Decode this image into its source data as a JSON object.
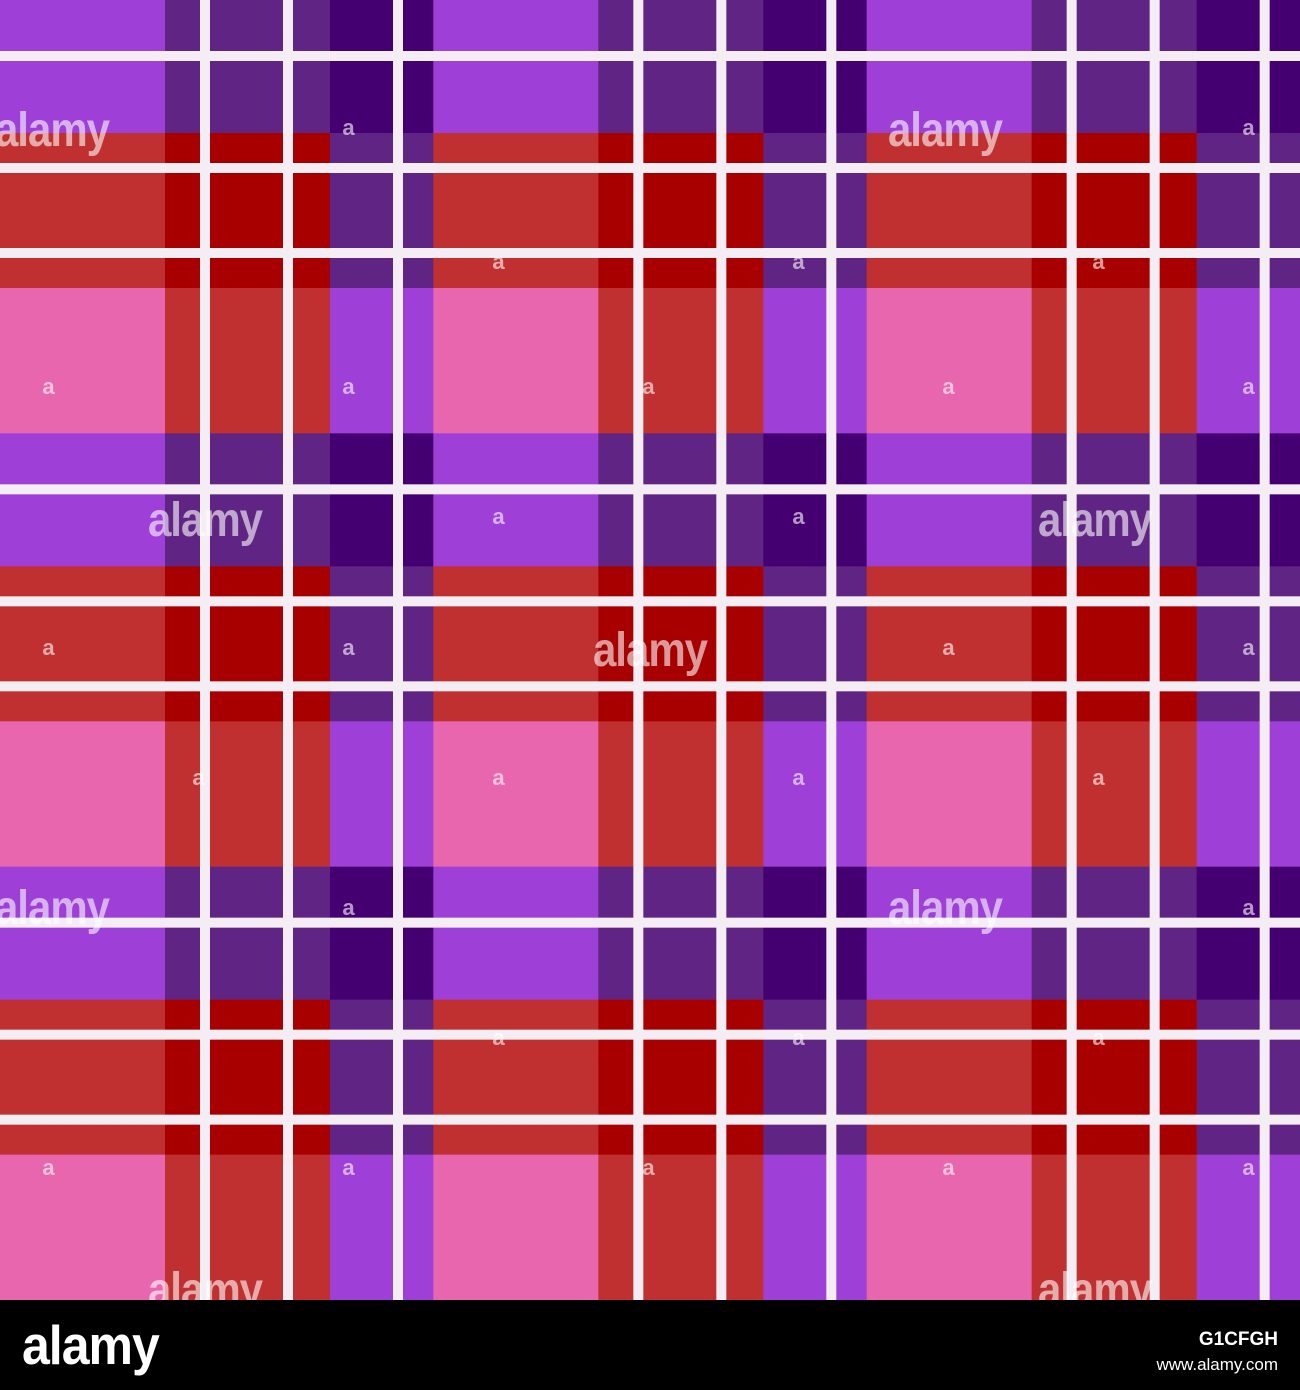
{
  "image": {
    "description_colors": {
      "pink": "#e866ae",
      "red": "#c03030",
      "violet": "#9e3fd8",
      "dark_red": "#a80000",
      "mid_purple": "#602484",
      "dark_purple": "#440070",
      "thread_white": "#f4eef4",
      "footer_bg": "#000000"
    }
  },
  "watermark": {
    "large_text": "alamy",
    "small_text": "a"
  },
  "footer": {
    "logo": "alamy",
    "image_id": "G1CFGH",
    "url": "www.alamy.com"
  }
}
